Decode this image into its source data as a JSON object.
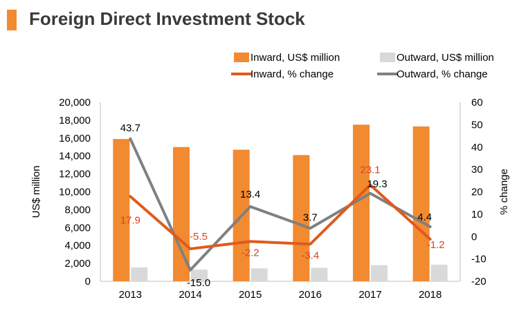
{
  "title": "Foreign Direct Investment Stock",
  "colors": {
    "accent": "#f28a30",
    "inward_bar": "#f28a30",
    "outward_bar": "#d9d9d9",
    "inward_line": "#e05a1c",
    "outward_line": "#808080",
    "inward_label": "#d64526",
    "outward_label": "#000000",
    "axis": "#000000",
    "text": "#000000"
  },
  "chart_data": {
    "type": "bar",
    "categories": [
      "2013",
      "2014",
      "2015",
      "2016",
      "2017",
      "2018"
    ],
    "series": [
      {
        "name": "Inward, US$ million",
        "type": "bar",
        "axis": "left",
        "values": [
          15900,
          15000,
          14700,
          14100,
          17500,
          17300
        ]
      },
      {
        "name": "Outward, US$ million",
        "type": "bar",
        "axis": "left",
        "values": [
          1550,
          1300,
          1450,
          1500,
          1800,
          1850
        ]
      },
      {
        "name": "Inward, % change",
        "type": "line",
        "axis": "right",
        "values": [
          17.9,
          -5.5,
          -2.2,
          -3.4,
          23.1,
          -1.2
        ],
        "labels": [
          "17.9",
          "-5.5",
          "-2.2",
          "-3.4",
          "23.1",
          "-1.2"
        ]
      },
      {
        "name": "Outward, % change",
        "type": "line",
        "axis": "right",
        "values": [
          43.7,
          -15.0,
          13.4,
          3.7,
          19.3,
          4.4
        ],
        "labels": [
          "43.7",
          "-15.0",
          "13.4",
          "3.7",
          "19.3",
          "4.4"
        ]
      }
    ],
    "ylabel": "US$ million",
    "y2label": "% change",
    "ylim": [
      0,
      20000
    ],
    "y2lim": [
      -20,
      60
    ],
    "yticks": [
      "0",
      "2,000",
      "4,000",
      "6,000",
      "8,000",
      "10,000",
      "12,000",
      "14,000",
      "16,000",
      "18,000",
      "20,000"
    ],
    "y2ticks": [
      "-20",
      "-10",
      "0",
      "10",
      "20",
      "30",
      "40",
      "50",
      "60"
    ],
    "grid": false,
    "legend_position": "top-right"
  }
}
